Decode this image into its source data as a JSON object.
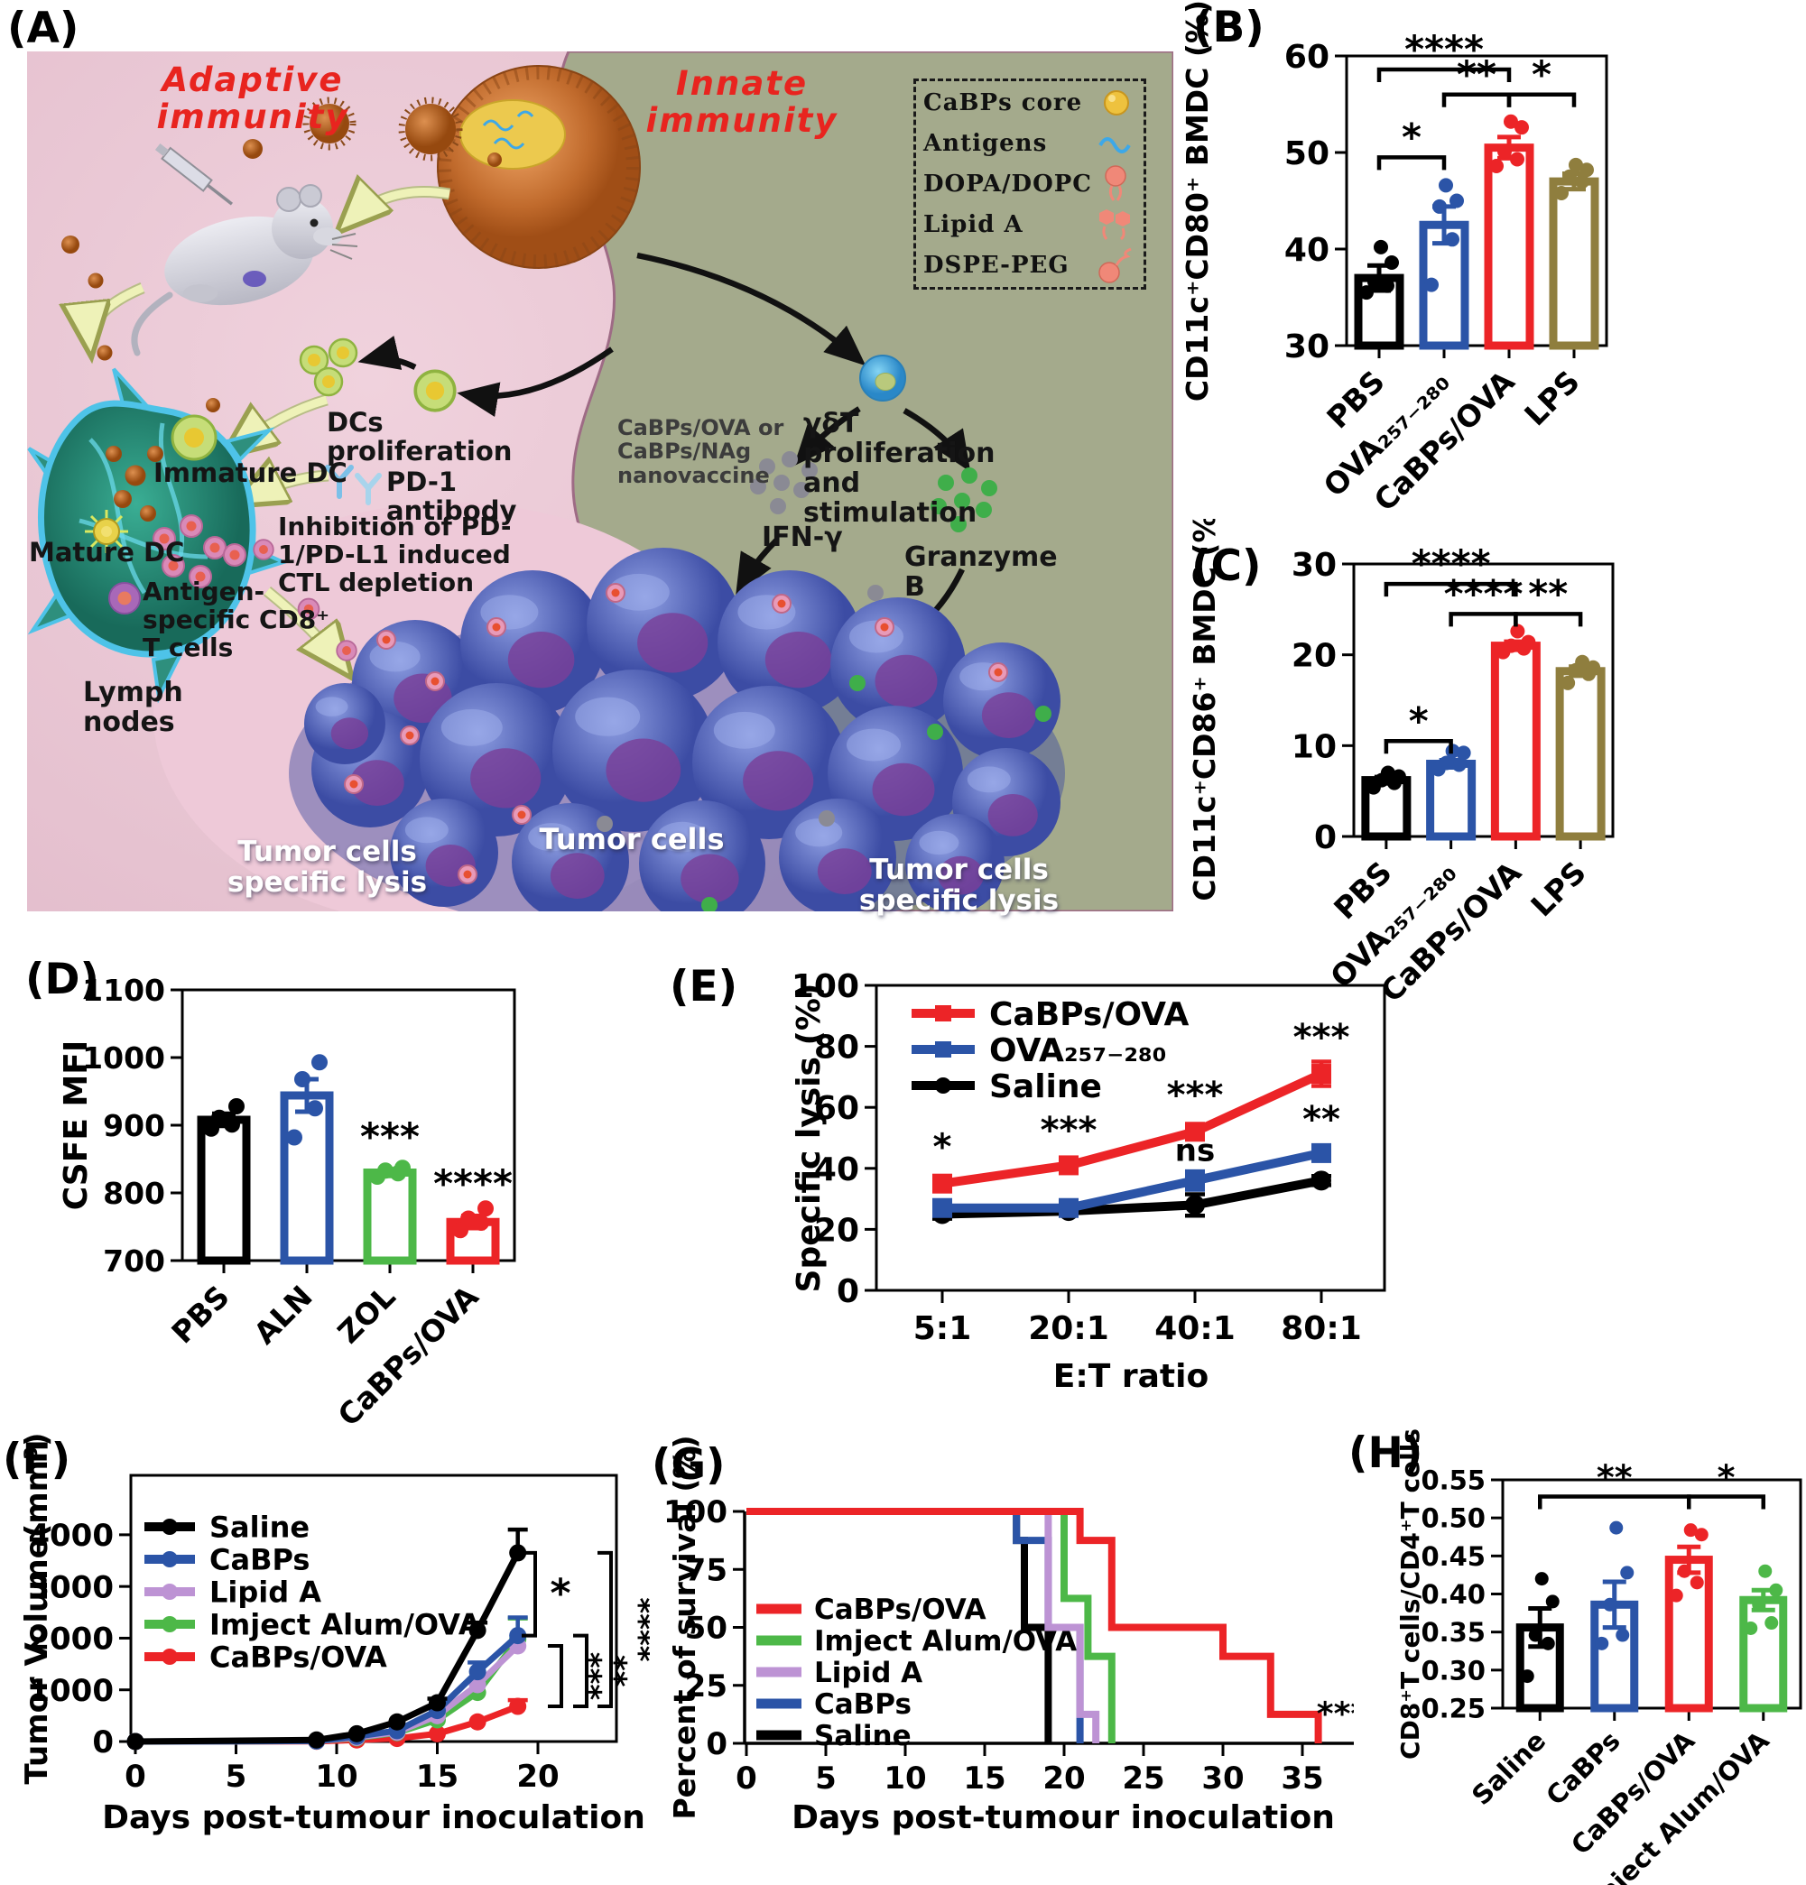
{
  "panels": {
    "a": {
      "label": "(A)",
      "adaptive_title": "Adaptive immunity",
      "innate_title": "Innate immunity",
      "legend_items": [
        {
          "label": "CaBPs core"
        },
        {
          "label": "Antigens"
        },
        {
          "label": "DOPA/DOPC"
        },
        {
          "label": "Lipid A"
        },
        {
          "label": "DSPE-PEG"
        }
      ],
      "labels": {
        "dcs_proliferation": "DCs proliferation",
        "immature_dc": "Immature DC",
        "mature_dc": "Mature DC",
        "antigen_specific": "Antigen-specific CD8⁺ T cells",
        "lymph_nodes": "Lymph nodes",
        "pd1_antibody": "PD-1 antibody",
        "inhibition": "Inhibition of PD-1/PD-L1 induced CTL depletion",
        "nanovaccine": "CaBPs/OVA or CaBPs/NAg nanovaccine",
        "gdt": "γδT proliferation and stimulation",
        "ifn": "IFN-γ",
        "granzyme": "Granzyme B",
        "tumor_cells": "Tumor cells",
        "lysis_left": "Tumor cells specific lysis",
        "lysis_right": "Tumor cells specific lysis"
      }
    },
    "b": {
      "label": "(B)"
    },
    "c": {
      "label": "(C)"
    },
    "d": {
      "label": "(D)"
    },
    "e": {
      "label": "(E)"
    },
    "f": {
      "label": "(F)"
    },
    "g": {
      "label": "(G)"
    },
    "h": {
      "label": "(H)"
    }
  },
  "chart_data": [
    {
      "panel": "B",
      "type": "bar",
      "title": "",
      "ylabel": "CD11c⁺CD80⁺ BMDC (%)",
      "ylim": [
        30,
        60
      ],
      "yticks": [
        30,
        40,
        50,
        60
      ],
      "categories": [
        "PBS",
        "OVA₂₅₇₋₂₈₀",
        "CaBPs/OVA",
        "LPS"
      ],
      "colors": [
        "#000000",
        "#2b54a7",
        "#ec2427",
        "#8f7e3e"
      ],
      "values": [
        37,
        42.5,
        50.5,
        47
      ],
      "errors": [
        1.3,
        1.9,
        1.1,
        0.8
      ],
      "points": [
        [
          35.5,
          36.2,
          36.6,
          38.6,
          40.2
        ],
        [
          36.3,
          41,
          44.4,
          45,
          46.6
        ],
        [
          48.6,
          49.3,
          50.1,
          52.6,
          53.2
        ],
        [
          45.8,
          47,
          47.5,
          48.2,
          48.7
        ]
      ],
      "brackets": [
        {
          "from": 0,
          "to": 1,
          "y": 49.5,
          "label": "*"
        },
        {
          "from": 1,
          "to": 2,
          "y": 56,
          "label": "**"
        },
        {
          "from": 2,
          "to": 3,
          "y": 56,
          "label": "*"
        },
        {
          "from": 0,
          "to": 2,
          "y": 58.6,
          "label": "****"
        }
      ]
    },
    {
      "panel": "C",
      "type": "bar",
      "title": "",
      "ylabel": "CD11c⁺CD86⁺ BMDC (%)",
      "ylim": [
        0,
        30
      ],
      "yticks": [
        0,
        10,
        20,
        30
      ],
      "categories": [
        "PBS",
        "OVA₂₅₇₋₂₈₀",
        "CaBPs/OVA",
        "LPS"
      ],
      "colors": [
        "#000000",
        "#2b54a7",
        "#ec2427",
        "#8f7e3e"
      ],
      "values": [
        6.2,
        8,
        21,
        18.2
      ],
      "errors": [
        0.35,
        0.4,
        0.45,
        0.5
      ],
      "points": [
        [
          5.4,
          5.9,
          6.2,
          6.6,
          7
        ],
        [
          7.4,
          7.9,
          8.1,
          9.2,
          9.4
        ],
        [
          20.3,
          20.7,
          21,
          21.4,
          22.6
        ],
        [
          16.9,
          17.9,
          18.3,
          18.6,
          19.2
        ]
      ],
      "brackets": [
        {
          "from": 0,
          "to": 1,
          "y": 10.5,
          "label": "*"
        },
        {
          "from": 1,
          "to": 2,
          "y": 24.5,
          "label": "****"
        },
        {
          "from": 2,
          "to": 3,
          "y": 24.5,
          "label": "**"
        },
        {
          "from": 0,
          "to": 2,
          "y": 27.8,
          "label": "****"
        }
      ]
    },
    {
      "panel": "D",
      "type": "bar",
      "title": "",
      "ylabel": "CSFE MFI",
      "ylim": [
        700,
        1100
      ],
      "yticks": [
        700,
        800,
        900,
        1000,
        1100
      ],
      "categories": [
        "PBS",
        "ALN",
        "ZOL",
        "CaBPs/OVA"
      ],
      "colors": [
        "#000000",
        "#2b54a7",
        "#4db848",
        "#ec2427"
      ],
      "values": [
        908,
        944,
        830,
        757
      ],
      "errors": [
        9,
        24,
        5,
        9
      ],
      "points": [
        [
          895,
          901,
          911,
          928
        ],
        [
          882,
          925,
          968,
          993
        ],
        [
          824,
          829,
          833,
          837
        ],
        [
          745,
          756,
          762,
          777
        ]
      ],
      "stars": [
        {
          "bar": 2,
          "y": 864,
          "label": "***"
        },
        {
          "bar": 3,
          "y": 795,
          "label": "****"
        }
      ]
    },
    {
      "panel": "E",
      "type": "line",
      "title": "",
      "ylabel": "Specific lysis (%)",
      "xlabel": "E:T ratio",
      "ylim": [
        0,
        100
      ],
      "yticks": [
        0,
        20,
        40,
        60,
        80,
        100
      ],
      "xcats": [
        "5:1",
        "20:1",
        "40:1",
        "80:1"
      ],
      "series": [
        {
          "name": "CaBPs/OVA",
          "color": "#ec2427",
          "marker": "square",
          "values": [
            35,
            41,
            52,
            71
          ],
          "errors": [
            2.5,
            2,
            2.5,
            4
          ]
        },
        {
          "name": "OVA₂₅₇₋₂₈₀",
          "color": "#2b54a7",
          "marker": "square",
          "values": [
            27,
            27,
            36,
            45
          ],
          "errors": [
            1.5,
            1.5,
            3,
            2
          ]
        },
        {
          "name": "Saline",
          "color": "#000000",
          "marker": "circle",
          "values": [
            25,
            26,
            28,
            36
          ],
          "errors": [
            1.5,
            1.5,
            3.5,
            1.5
          ]
        }
      ],
      "annotations": [
        {
          "xi": 0,
          "y": 43,
          "text": "*"
        },
        {
          "xi": 1,
          "y": 48.5,
          "text": "***"
        },
        {
          "xi": 2,
          "y": 60,
          "text": "***"
        },
        {
          "xi": 2,
          "y": 42.5,
          "text": "ns"
        },
        {
          "xi": 3,
          "y": 79,
          "text": "***"
        },
        {
          "xi": 3,
          "y": 52,
          "text": "**"
        }
      ],
      "legend": true
    },
    {
      "panel": "F",
      "type": "line",
      "title": "",
      "ylabel": "Tumor Volume(mm³)",
      "xlabel": "Days post-tumour inoculation",
      "ylim": [
        0,
        5150
      ],
      "yticks": [
        0,
        1000,
        2000,
        3000,
        4000
      ],
      "x": [
        0,
        9,
        11,
        13,
        15,
        17,
        19
      ],
      "xticks": [
        0,
        5,
        10,
        15,
        20
      ],
      "series": [
        {
          "name": "Saline",
          "color": "#000000",
          "marker": "circle",
          "values": [
            0,
            30,
            150,
            380,
            750,
            2150,
            3650
          ],
          "errors": [
            0,
            0,
            0,
            0,
            80,
            150,
            450
          ]
        },
        {
          "name": "CaBPs",
          "color": "#2b54a7",
          "marker": "circle",
          "values": [
            0,
            10,
            100,
            210,
            600,
            1350,
            2050
          ],
          "errors": [
            0,
            0,
            0,
            0,
            0,
            180,
            350
          ]
        },
        {
          "name": "Lipid A",
          "color": "#bd93d4",
          "marker": "circle",
          "values": [
            0,
            10,
            80,
            180,
            500,
            1100,
            1850
          ],
          "errors": [
            0,
            0,
            0,
            0,
            0,
            0,
            0
          ]
        },
        {
          "name": "Imject Alum/OVA",
          "color": "#4db848",
          "marker": "circle",
          "values": [
            0,
            10,
            70,
            170,
            420,
            950,
            1980
          ],
          "errors": [
            0,
            0,
            0,
            0,
            0,
            0,
            400
          ]
        },
        {
          "name": "CaBPs/OVA",
          "color": "#ec2427",
          "marker": "circle",
          "values": [
            0,
            5,
            30,
            60,
            150,
            380,
            680
          ],
          "errors": [
            0,
            0,
            0,
            0,
            0,
            0,
            120
          ]
        }
      ],
      "legend": true,
      "right_brackets": [
        {
          "y1": 3650,
          "y2": 2050,
          "label": "*",
          "rotated": false
        },
        {
          "y1": 1850,
          "y2": 680,
          "label": "***",
          "rotated": true
        },
        {
          "y1": 2050,
          "y2": 680,
          "label": "**",
          "rotated": true
        },
        {
          "y1": 3650,
          "y2": 680,
          "label": "****",
          "rotated": true
        }
      ]
    },
    {
      "panel": "G",
      "type": "step",
      "title": "",
      "ylabel": "Percent of survival (%)",
      "xlabel": "Days post-tumour inoculation",
      "ylim": [
        0,
        100
      ],
      "yticks": [
        0,
        25,
        50,
        75,
        100
      ],
      "xlim": [
        0,
        40
      ],
      "xticks": [
        0,
        5,
        10,
        15,
        20,
        25,
        30,
        35,
        40
      ],
      "series": [
        {
          "name": "CaBPs/OVA",
          "color": "#ec2427",
          "steps": [
            [
              0,
              100
            ],
            [
              21,
              100
            ],
            [
              21,
              87.5
            ],
            [
              23,
              87.5
            ],
            [
              23,
              50
            ],
            [
              30,
              50
            ],
            [
              30,
              37.5
            ],
            [
              33,
              37.5
            ],
            [
              33,
              12.5
            ],
            [
              36,
              12.5
            ],
            [
              36,
              0
            ]
          ]
        },
        {
          "name": "Imject Alum/OVA",
          "color": "#4db848",
          "steps": [
            [
              0,
              100
            ],
            [
              20,
              100
            ],
            [
              20,
              62.5
            ],
            [
              21.5,
              62.5
            ],
            [
              21.5,
              37.5
            ],
            [
              23,
              37.5
            ],
            [
              23,
              0
            ]
          ]
        },
        {
          "name": "Lipid A",
          "color": "#bd93d4",
          "steps": [
            [
              0,
              100
            ],
            [
              19,
              100
            ],
            [
              19,
              50
            ],
            [
              21,
              50
            ],
            [
              21,
              12.5
            ],
            [
              22,
              12.5
            ],
            [
              22,
              0
            ]
          ]
        },
        {
          "name": "CaBPs",
          "color": "#2b54a7",
          "steps": [
            [
              0,
              100
            ],
            [
              17,
              100
            ],
            [
              17,
              87.5
            ],
            [
              19,
              87.5
            ],
            [
              19,
              50
            ],
            [
              21,
              50
            ],
            [
              21,
              0
            ]
          ]
        },
        {
          "name": "Saline",
          "color": "#000000",
          "steps": [
            [
              0,
              100
            ],
            [
              17,
              100
            ],
            [
              17,
              87.5
            ],
            [
              17.5,
              87.5
            ],
            [
              17.5,
              50
            ],
            [
              19,
              50
            ],
            [
              19,
              0
            ]
          ]
        }
      ],
      "annotations": [
        {
          "x": 37.5,
          "y": 8,
          "text": "***"
        }
      ]
    },
    {
      "panel": "H",
      "type": "bar",
      "title": "",
      "ylabel": "CD8⁺T cells/CD4⁺T cells",
      "ylim": [
        0.25,
        0.55
      ],
      "yticks": [
        0.25,
        0.3,
        0.35,
        0.4,
        0.45,
        0.5,
        0.55
      ],
      "ytick_labels": [
        "0.25",
        "0.30",
        "0.35",
        "0.40",
        "0.45",
        "0.50",
        "0.55"
      ],
      "categories": [
        "Saline",
        "CaBPs",
        "CaBPs/OVA",
        "Imject Alum/OVA"
      ],
      "colors": [
        "#000000",
        "#2b54a7",
        "#ec2427",
        "#4db848"
      ],
      "values": [
        0.356,
        0.386,
        0.445,
        0.392
      ],
      "errors": [
        0.025,
        0.03,
        0.017,
        0.013
      ],
      "points": [
        [
          0.292,
          0.335,
          0.346,
          0.39,
          0.42
        ],
        [
          0.335,
          0.346,
          0.386,
          0.428,
          0.487
        ],
        [
          0.398,
          0.415,
          0.43,
          0.478,
          0.484
        ],
        [
          0.355,
          0.362,
          0.386,
          0.405,
          0.43
        ]
      ],
      "brackets": [
        {
          "from": 0,
          "to": 2,
          "y": 0.528,
          "label": "**"
        },
        {
          "from": 2,
          "to": 3,
          "y": 0.528,
          "label": "*"
        }
      ]
    }
  ]
}
